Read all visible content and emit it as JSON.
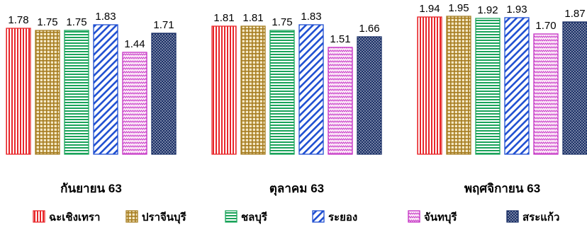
{
  "chart_data": {
    "type": "bar",
    "title": "",
    "xlabel": "",
    "ylabel": "",
    "ylim": [
      0,
      2.1
    ],
    "grid": false,
    "legend_position": "bottom",
    "categories": [
      "กันยายน 63",
      "ตุลาคม 63",
      "พฤศจิกายน 63"
    ],
    "series": [
      {
        "name": "ฉะเชิงเทรา",
        "values": [
          1.78,
          1.81,
          1.94
        ],
        "color": "#e8262a",
        "pattern": "vertical-lines"
      },
      {
        "name": "ปราจีนบุรี",
        "values": [
          1.75,
          1.81,
          1.95
        ],
        "color": "#a67c1f",
        "pattern": "grid"
      },
      {
        "name": "ชลบุรี",
        "values": [
          1.75,
          1.75,
          1.92
        ],
        "color": "#1aa35a",
        "pattern": "horizontal-lines"
      },
      {
        "name": "ระยอง",
        "values": [
          1.83,
          1.83,
          1.93
        ],
        "color": "#1f4fd1",
        "pattern": "diagonal-lines"
      },
      {
        "name": "จันทบุรี",
        "values": [
          1.44,
          1.51,
          1.7
        ],
        "color": "#c42ec4",
        "pattern": "zigzag"
      },
      {
        "name": "สระแก้ว",
        "values": [
          1.71,
          1.66,
          1.87
        ],
        "color": "#1a2f66",
        "pattern": "dots"
      }
    ],
    "value_labels": [
      [
        "1.78",
        "1.81",
        "1.94"
      ],
      [
        "1.75",
        "1.81",
        "1.95"
      ],
      [
        "1.75",
        "1.75",
        "1.92"
      ],
      [
        "1.83",
        "1.83",
        "1.93"
      ],
      [
        "1.44",
        "1.51",
        "1.70"
      ],
      [
        "1.71",
        "1.66",
        "1.87"
      ]
    ]
  }
}
